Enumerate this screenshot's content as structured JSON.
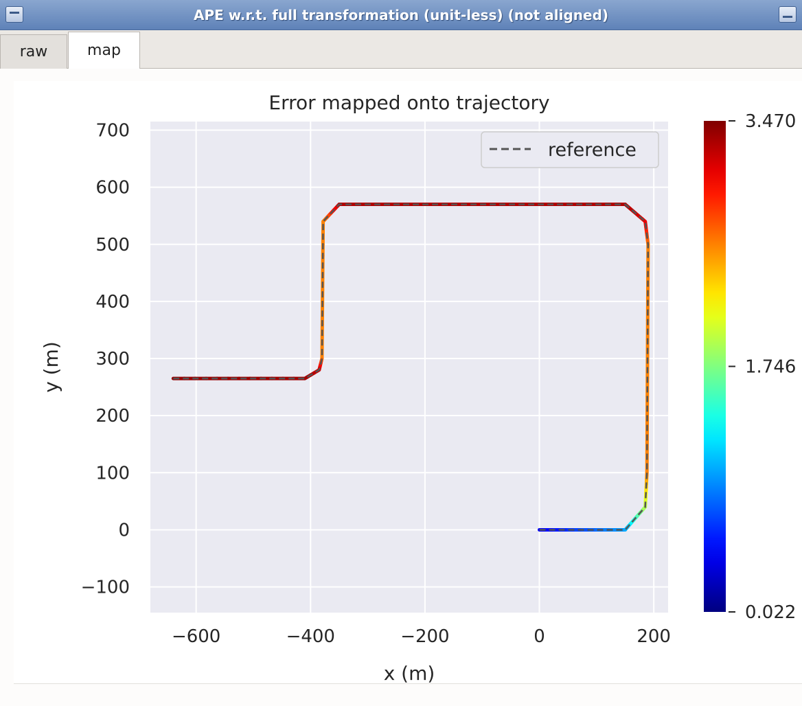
{
  "window": {
    "title": "APE w.r.t. full transformation (unit-less) (not aligned)"
  },
  "tabs": [
    {
      "label": "raw",
      "selected": false
    },
    {
      "label": "map",
      "selected": true
    }
  ],
  "chart_data": {
    "type": "line",
    "title": "Error mapped onto trajectory",
    "xlabel": "x (m)",
    "ylabel": "y (m)",
    "xlim": [
      -680,
      225
    ],
    "ylim": [
      -145,
      715
    ],
    "xticks": [
      -600,
      -400,
      -200,
      0,
      200
    ],
    "yticks": [
      -100,
      0,
      100,
      200,
      300,
      400,
      500,
      600,
      700
    ],
    "xtick_labels": [
      "−600",
      "−400",
      "−200",
      "0",
      "200"
    ],
    "ytick_labels": [
      "−100",
      "0",
      "100",
      "200",
      "300",
      "400",
      "500",
      "600",
      "700"
    ],
    "grid": true,
    "legend": {
      "entries": [
        "reference"
      ],
      "placement": "top-right"
    },
    "colorbar": {
      "min": 0.022,
      "max": 3.47,
      "tick_values": [
        3.47,
        1.746,
        0.022
      ],
      "tick_labels": [
        "3.470",
        "1.746",
        "0.022"
      ],
      "colormap": "jet"
    },
    "series": [
      {
        "name": "reference",
        "style": "dashed",
        "color": "#555555",
        "x": [
          0,
          150,
          185,
          188,
          190,
          185,
          150,
          -350,
          -378,
          -380,
          -385,
          -410,
          -640
        ],
        "y": [
          0,
          0,
          40,
          100,
          500,
          540,
          570,
          570,
          540,
          300,
          280,
          265,
          265
        ]
      }
    ],
    "error_colored_path": {
      "x": [
        0,
        150,
        185,
        188,
        190,
        185,
        150,
        -350,
        -378,
        -380,
        -385,
        -410,
        -640
      ],
      "y": [
        0,
        0,
        40,
        100,
        500,
        540,
        570,
        570,
        540,
        300,
        280,
        265,
        265
      ],
      "error": [
        0.4,
        1.0,
        1.9,
        2.6,
        2.6,
        3.1,
        3.3,
        3.3,
        2.6,
        2.6,
        3.2,
        3.35,
        3.4
      ]
    }
  }
}
